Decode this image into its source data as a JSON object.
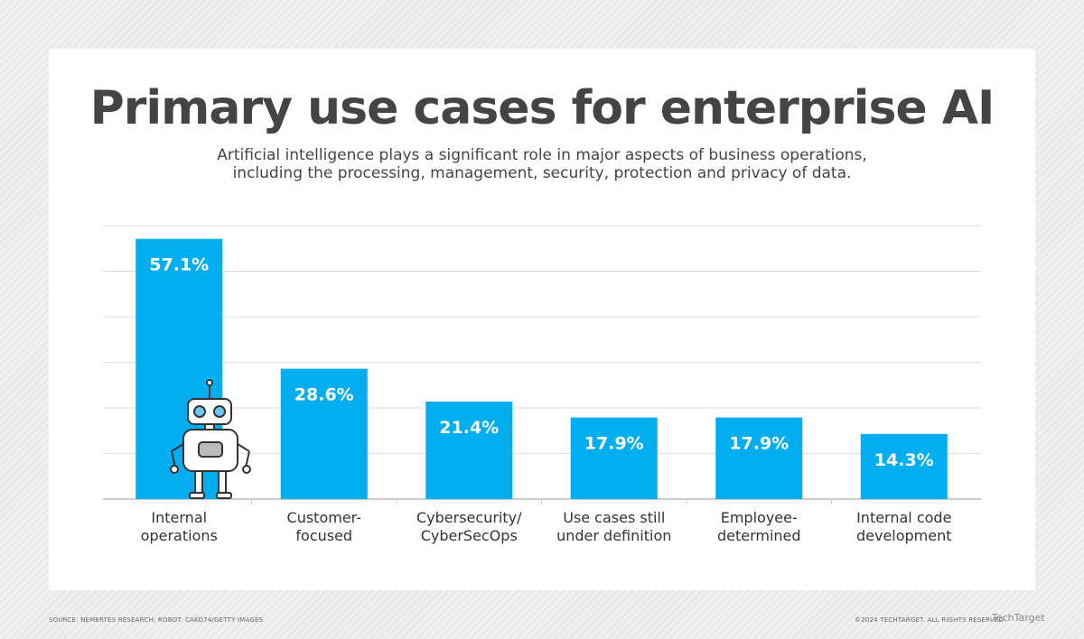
{
  "chart_data": {
    "type": "bar",
    "title": "Primary use cases for enterprise AI",
    "subtitle": "Artificial intelligence plays a significant role in major aspects of business operations, including the processing, management, security, protection and privacy of data.",
    "categories": [
      "Internal\noperations",
      "Customer-\nfocused",
      "Cybersecurity/\nCyberSecOps",
      "Use cases still\nunder definition",
      "Employee-\ndetermined",
      "Internal code\ndevelopment"
    ],
    "values": [
      57.1,
      28.6,
      21.4,
      17.9,
      17.9,
      14.3
    ],
    "value_labels": [
      "57.1%",
      "28.6%",
      "21.4%",
      "17.9%",
      "17.9%",
      "14.3%"
    ],
    "color": "#00aeef",
    "ylim": [
      0,
      60
    ],
    "yticks": [
      0,
      10,
      20,
      30,
      40,
      50,
      60
    ],
    "grid": true,
    "source": "SOURCE: NEMERTES RESEARCH; ROBOT: CAKO74/GETTY IMAGES",
    "copyright": "©2024 TECHTARGET. ALL RIGHTS RESERVED",
    "logo": "TechTarget"
  }
}
